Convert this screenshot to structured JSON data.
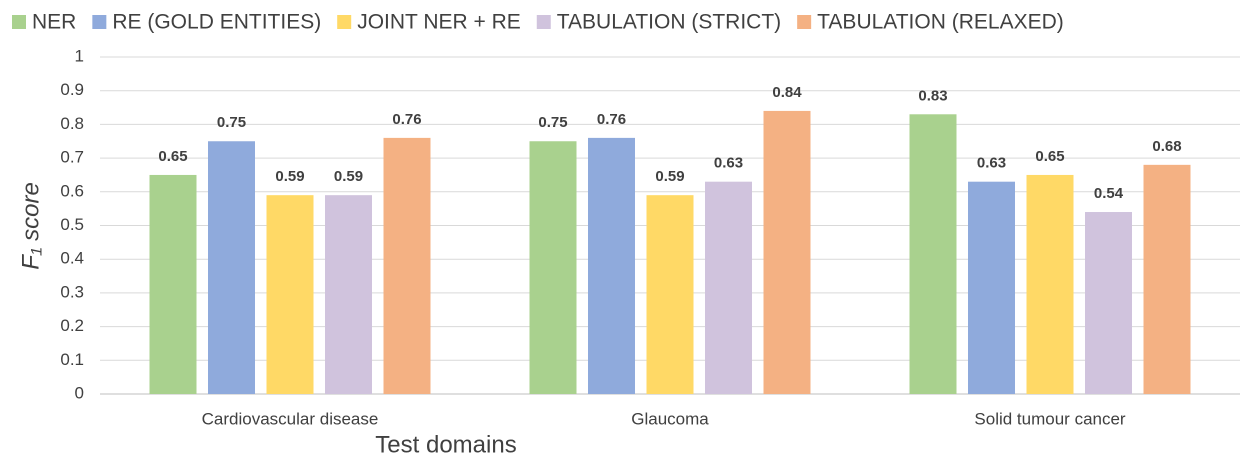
{
  "chart_data": {
    "type": "bar",
    "x_label": "Test domains",
    "y_label": "F₁ score",
    "categories": [
      "Cardiovascular disease",
      "Glaucoma",
      "Solid tumour cancer"
    ],
    "series": [
      {
        "name": "NER",
        "color": "#a9d18e",
        "values": [
          0.65,
          0.75,
          0.83
        ]
      },
      {
        "name": "RE (GOLD ENTITIES)",
        "color": "#8faadc",
        "values": [
          0.75,
          0.76,
          0.63
        ]
      },
      {
        "name": "JOINT NER + RE",
        "color": "#ffd966",
        "values": [
          0.59,
          0.59,
          0.65
        ]
      },
      {
        "name": "TABULATION (STRICT)",
        "color": "#d0c3dd",
        "values": [
          0.59,
          0.63,
          0.54
        ]
      },
      {
        "name": "TABULATION (RELAXED)",
        "color": "#f4b183",
        "values": [
          0.76,
          0.84,
          0.68
        ]
      }
    ],
    "ylim": [
      0,
      1
    ],
    "yticks": [
      0,
      0.1,
      0.2,
      0.3,
      0.4,
      0.5,
      0.6,
      0.7,
      0.8,
      0.9,
      1
    ],
    "grid": true,
    "legend": "top"
  }
}
